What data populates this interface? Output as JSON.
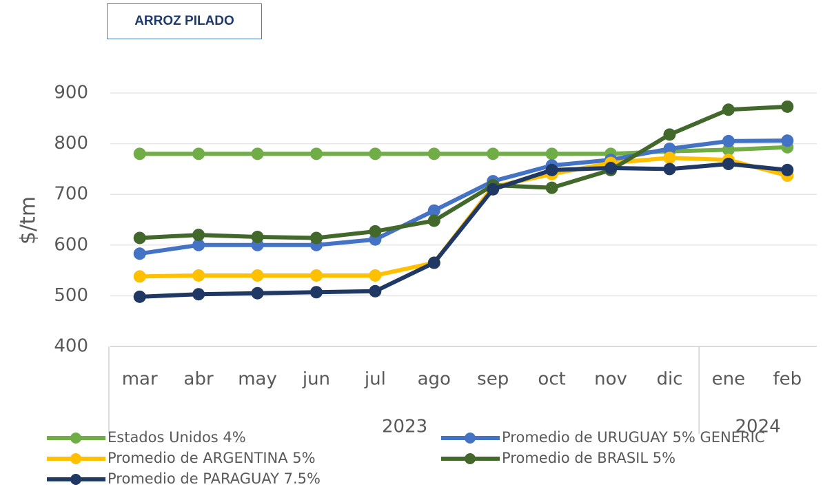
{
  "chart_data": {
    "type": "line",
    "title": "ARROZ PILADO",
    "y_label": "$/tm",
    "categories": [
      "mar",
      "abr",
      "may",
      "jun",
      "jul",
      "ago",
      "sep",
      "oct",
      "nov",
      "dic",
      "ene",
      "feb"
    ],
    "group_labels": [
      "2023",
      "2024"
    ],
    "ylim": [
      400,
      900
    ],
    "yticks": [
      400,
      500,
      600,
      700,
      800,
      900
    ],
    "grid": true,
    "series": [
      {
        "name": "Estados Unidos 4%",
        "color": "#70ad47",
        "values": [
          780,
          780,
          780,
          780,
          780,
          780,
          780,
          780,
          780,
          785,
          788,
          793
        ]
      },
      {
        "name": "Promedio de URUGUAY 5% GENERIC",
        "color": "#4472c4",
        "values": [
          583,
          600,
          600,
          600,
          611,
          668,
          726,
          757,
          768,
          790,
          805,
          806
        ]
      },
      {
        "name": "Promedio de ARGENTINA 5%",
        "color": "#ffc000",
        "values": [
          538,
          540,
          540,
          540,
          540,
          565,
          715,
          740,
          762,
          772,
          768,
          737
        ]
      },
      {
        "name": "Promedio de BRASIL 5%",
        "color": "#43682b",
        "values": [
          614,
          620,
          616,
          614,
          627,
          648,
          718,
          713,
          748,
          818,
          867,
          873
        ]
      },
      {
        "name": "Promedio de PARAGUAY 7.5%",
        "color": "#203864",
        "values": [
          498,
          503,
          505,
          507,
          509,
          565,
          710,
          748,
          752,
          750,
          760,
          748
        ]
      }
    ]
  }
}
